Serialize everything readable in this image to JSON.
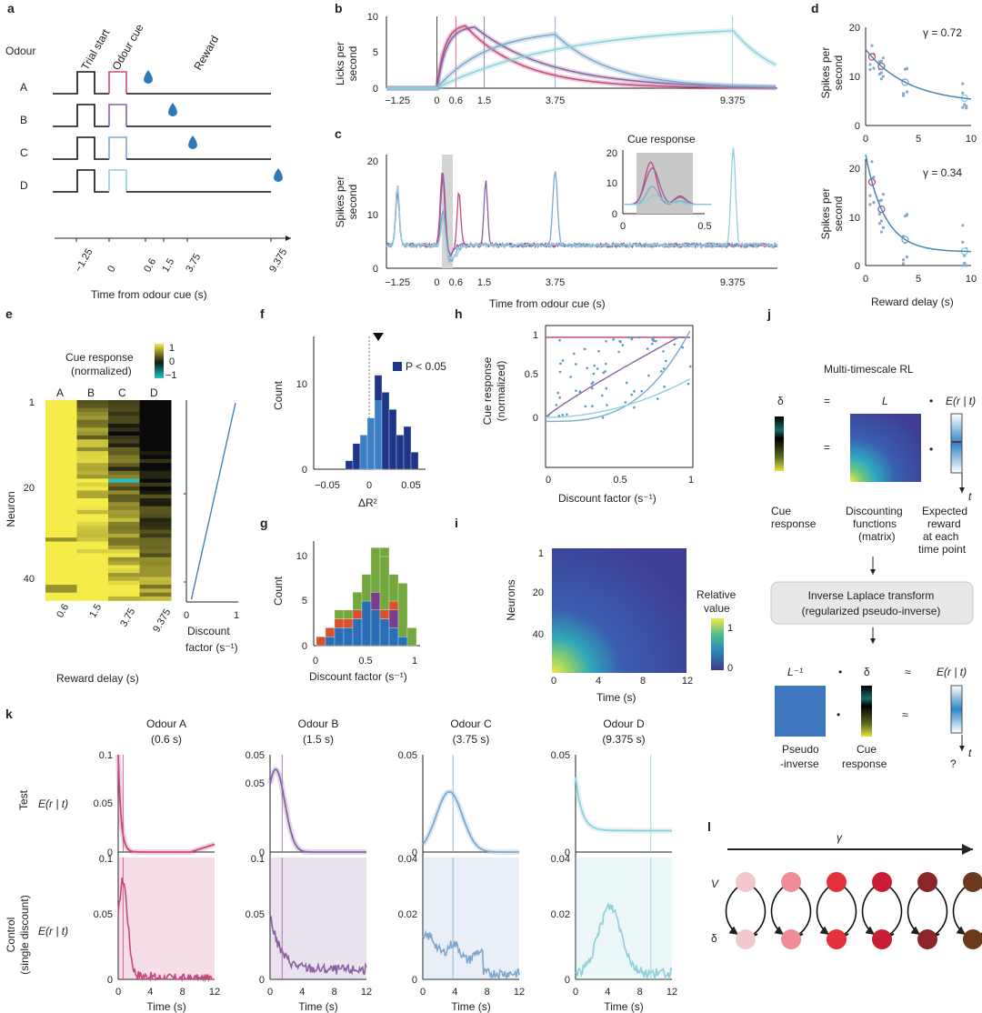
{
  "colors": {
    "A": "#c8487e",
    "B": "#8a62a2",
    "C": "#7ea8cc",
    "D": "#8fd0da",
    "water": "#2a7bb8",
    "bar_sig": "#1f3687",
    "bar_ns": "#3d7fc4",
    "g_blue": "#2a6fb5",
    "g_green": "#74a83e",
    "g_red": "#d8502e",
    "g_purple": "#7a3d8c",
    "heat_hi": "#f3e84a",
    "heat_lo": "#3a3b8e"
  },
  "panel_letters": {
    "a": "a",
    "b": "b",
    "c": "c",
    "d": "d",
    "e": "e",
    "f": "f",
    "g": "g",
    "h": "h",
    "i": "i",
    "j": "j",
    "k": "k",
    "l": "l"
  },
  "panel_a": {
    "odour_header": "Odour",
    "odours": [
      "A",
      "B",
      "C",
      "D"
    ],
    "trial_start": "Trial start",
    "odour_cue": "Odour cue",
    "reward": "Reward",
    "ticks": [
      "−1.25",
      "0",
      "0.6",
      "1.5",
      "3.75",
      "9.375"
    ],
    "xlabel": "Time from odour cue (s)"
  },
  "panel_b": {
    "ylabel": [
      "Licks per",
      "second"
    ],
    "yticks": [
      "0",
      "5",
      "10"
    ],
    "xticks": [
      "−1.25",
      "0",
      "0.6",
      "1.5",
      "3.75",
      "9.375"
    ]
  },
  "panel_c": {
    "ylabel": [
      "Spikes per",
      "second"
    ],
    "yticks": [
      "0",
      "10",
      "20"
    ],
    "xticks": [
      "−1.25",
      "0",
      "0.6",
      "1.5",
      "3.75",
      "9.375"
    ],
    "xlabel": "Time from odour cue (s)",
    "inset_title": "Cue response",
    "inset_yticks": [
      "0",
      "10",
      "20"
    ],
    "inset_xticks": [
      "0",
      "0.5"
    ]
  },
  "panel_d": {
    "ylabel": [
      "Spikes per",
      "second"
    ],
    "top_gamma": "γ = 0.72",
    "bottom_gamma": "γ = 0.34",
    "top_yticks": [
      "0",
      "10",
      "20"
    ],
    "bottom_yticks": [
      "0",
      "10",
      "20"
    ],
    "xticks": [
      "0",
      "5",
      "10"
    ],
    "xlabel": "Reward delay (s)"
  },
  "panel_e": {
    "colorbar_title": [
      "Cue response",
      "(normalized)"
    ],
    "colorbar_ticks": [
      "1",
      "0",
      "−1"
    ],
    "columns": [
      "A",
      "B",
      "C",
      "D"
    ],
    "yticks": [
      "1",
      "20",
      "40"
    ],
    "ylabel": "Neuron",
    "xticks": [
      "0.6",
      "1.5",
      "3.75",
      "9.375"
    ],
    "xlabel": "Reward delay (s)",
    "side_xticks": [
      "0",
      "1"
    ],
    "side_xlabel": [
      "Discount",
      "factor (s⁻¹)"
    ]
  },
  "panel_f": {
    "ylabel": "Count",
    "yticks": [
      "0",
      "10"
    ],
    "xticks": [
      "−0.05",
      "0",
      "0.05"
    ],
    "xlabel": "ΔR²",
    "legend": "P < 0.05"
  },
  "panel_g": {
    "ylabel": "Count",
    "yticks": [
      "0",
      "5",
      "10"
    ],
    "xticks": [
      "0",
      "0.5",
      "1"
    ],
    "xlabel": "Discount factor (s⁻¹)"
  },
  "panel_h": {
    "ylabel": [
      "Cue response",
      "(normalized)"
    ],
    "yticks": [
      "0",
      "0.5",
      "1"
    ],
    "xticks": [
      "0",
      "0.5",
      "1"
    ],
    "xlabel": "Discount factor (s⁻¹)"
  },
  "panel_i": {
    "ylabel": "Neurons",
    "yticks": [
      "1",
      "20",
      "40"
    ],
    "xticks": [
      "0",
      "4",
      "8",
      "12"
    ],
    "xlabel": "Time (s)",
    "colorbar_title": [
      "Relative",
      "value"
    ],
    "colorbar_ticks": [
      "1",
      "0"
    ]
  },
  "panel_j": {
    "title": "Multi-timescale RL",
    "delta": "δ",
    "equals": "=",
    "L": "L",
    "dot": "•",
    "E": "E(r | t)",
    "t": "t",
    "cue_response": [
      "Cue",
      "response"
    ],
    "discounting": [
      "Discounting",
      "functions",
      "(matrix)"
    ],
    "expected": [
      "Expected",
      "reward",
      "at each",
      "time point"
    ],
    "box": [
      "Inverse Laplace transform",
      "(regularized pseudo-inverse)"
    ],
    "Linv": "L⁻¹",
    "approx": "≈",
    "pseudo": [
      "Pseudo",
      "-inverse"
    ],
    "cue2": [
      "Cue",
      "response"
    ],
    "question": "?"
  },
  "panel_k": {
    "columns": [
      {
        "title": "Odour A",
        "delay": "(0.6 s)"
      },
      {
        "title": "Odour B",
        "delay": "(1.5 s)"
      },
      {
        "title": "Odour C",
        "delay": "(3.75 s)"
      },
      {
        "title": "Odour D",
        "delay": "(9.375 s)"
      }
    ],
    "row_test": "Test",
    "row_control": [
      "Control",
      "(single discount)"
    ],
    "ylabel": "E(r | t)",
    "test_ymax": [
      "0.1",
      "0.05",
      "0.05",
      "0.05"
    ],
    "test_ymid": [
      "0.05",
      "0.05",
      "",
      ""
    ],
    "ctrl_ymax": [
      "0.1",
      "0.1",
      "0.04",
      "0.04"
    ],
    "ctrl_ymid": [
      "0.05",
      "0.05",
      "0.02",
      "0.02"
    ],
    "xticks": [
      "0",
      "4",
      "8",
      "12"
    ],
    "xlabel": "Time (s)"
  },
  "panel_l": {
    "gamma": "γ",
    "V": "V",
    "delta": "δ",
    "node_colors": [
      "#f2c8cf",
      "#ee8d97",
      "#e3303a",
      "#c81d35",
      "#8b2528",
      "#6b3a1c"
    ]
  }
}
